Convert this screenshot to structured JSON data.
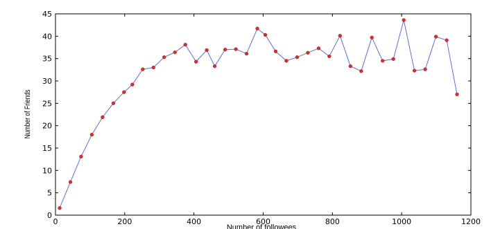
{
  "chart_data": {
    "type": "line",
    "xlabel": "Number of followees",
    "ylabel": "Number of Friends",
    "xlim": [
      0,
      1200
    ],
    "ylim": [
      0,
      45
    ],
    "x_ticks": [
      0,
      200,
      400,
      600,
      800,
      1000,
      1200
    ],
    "y_ticks": [
      0,
      5,
      10,
      15,
      20,
      25,
      30,
      35,
      40,
      45
    ],
    "grid": false,
    "series": [
      {
        "line_color": "#5b6fe0",
        "marker_color": "#d92c2c",
        "x": [
          12,
          43,
          74,
          105,
          136,
          167,
          198,
          222,
          252,
          283,
          314,
          345,
          375,
          406,
          437,
          460,
          490,
          521,
          552,
          583,
          606,
          636,
          667,
          698,
          729,
          760,
          791,
          822,
          852,
          883,
          914,
          945,
          976,
          1006,
          1037,
          1068,
          1099,
          1130,
          1160
        ],
        "y": [
          1.6,
          7.4,
          13.1,
          18.0,
          21.9,
          25.0,
          27.5,
          29.2,
          32.6,
          33.0,
          35.3,
          36.4,
          38.1,
          34.3,
          36.9,
          33.3,
          37.0,
          37.1,
          36.1,
          41.7,
          40.3,
          36.6,
          34.5,
          35.3,
          36.3,
          37.3,
          35.5,
          40.1,
          33.3,
          32.2,
          39.7,
          34.5,
          34.9,
          43.6,
          32.3,
          32.6,
          39.9,
          39.1,
          27.0
        ]
      }
    ]
  }
}
